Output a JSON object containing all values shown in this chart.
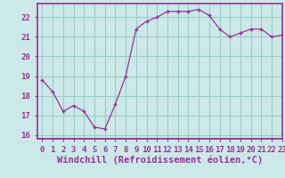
{
  "x": [
    0,
    1,
    2,
    3,
    4,
    5,
    6,
    7,
    8,
    9,
    10,
    11,
    12,
    13,
    14,
    15,
    16,
    17,
    18,
    19,
    20,
    21,
    22,
    23
  ],
  "y": [
    18.8,
    18.2,
    17.2,
    17.5,
    17.2,
    16.4,
    16.3,
    17.55,
    19.0,
    21.4,
    21.8,
    22.0,
    22.3,
    22.3,
    22.3,
    22.4,
    22.1,
    21.4,
    21.0,
    21.2,
    21.4,
    21.4,
    21.0,
    21.1
  ],
  "line_color": "#993399",
  "marker": "+",
  "bg_color": "#cce8e8",
  "plot_bg_color": "#cce8e8",
  "grid_color": "#99cccc",
  "border_color": "#993399",
  "xlabel": "Windchill (Refroidissement éolien,°C)",
  "xlim": [
    -0.5,
    23
  ],
  "ylim": [
    15.8,
    22.7
  ],
  "yticks": [
    16,
    17,
    18,
    19,
    20,
    21,
    22
  ],
  "xticks": [
    0,
    1,
    2,
    3,
    4,
    5,
    6,
    7,
    8,
    9,
    10,
    11,
    12,
    13,
    14,
    15,
    16,
    17,
    18,
    19,
    20,
    21,
    22,
    23
  ],
  "xtick_labels": [
    "0",
    "1",
    "2",
    "3",
    "4",
    "5",
    "6",
    "7",
    "8",
    "9",
    "10",
    "11",
    "12",
    "13",
    "14",
    "15",
    "16",
    "17",
    "18",
    "19",
    "20",
    "21",
    "22",
    "23"
  ],
  "label_color": "#993399",
  "tick_color": "#993399",
  "tick_fontsize": 6.5,
  "xlabel_fontsize": 7.5
}
